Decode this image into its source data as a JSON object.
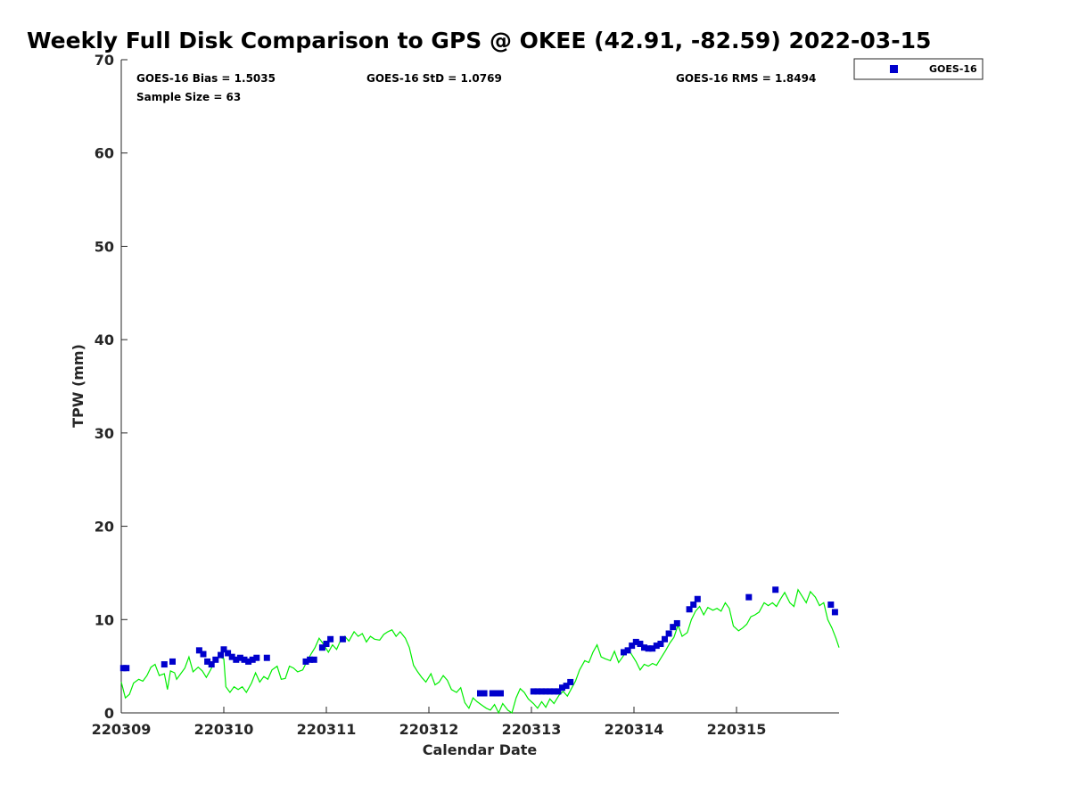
{
  "chart_data": {
    "type": "scatter",
    "title": "Weekly Full Disk Comparison to GPS @ OKEE (42.91, -82.59) 2022-03-15",
    "xlabel": "Calendar Date",
    "ylabel": "TPW (mm)",
    "xlim": [
      0,
      7
    ],
    "ylim": [
      0,
      70
    ],
    "x_ticks": [
      {
        "value": 0,
        "label": "220309"
      },
      {
        "value": 1,
        "label": "220310"
      },
      {
        "value": 2,
        "label": "220311"
      },
      {
        "value": 3,
        "label": "220312"
      },
      {
        "value": 4,
        "label": "220313"
      },
      {
        "value": 5,
        "label": "220314"
      },
      {
        "value": 6,
        "label": "220315"
      }
    ],
    "y_ticks": [
      0,
      10,
      20,
      30,
      40,
      50,
      60,
      70
    ],
    "grid": false,
    "legend": {
      "placement": "outside-top-right",
      "entries": [
        "GOES-16"
      ]
    },
    "stats": {
      "bias": "GOES-16 Bias = 1.5035",
      "std": "GOES-16 StD = 1.0769",
      "rms": "GOES-16 RMS = 1.8494",
      "sample_size": "Sample Size = 63"
    },
    "series": [
      {
        "name": "GOES-16",
        "kind": "scatter",
        "color": "#0000cc",
        "points": [
          [
            0.02,
            4.8
          ],
          [
            0.05,
            4.8
          ],
          [
            0.42,
            5.2
          ],
          [
            0.5,
            5.5
          ],
          [
            0.76,
            6.7
          ],
          [
            0.8,
            6.3
          ],
          [
            0.84,
            5.5
          ],
          [
            0.88,
            5.2
          ],
          [
            0.92,
            5.7
          ],
          [
            0.97,
            6.2
          ],
          [
            1.0,
            6.8
          ],
          [
            1.04,
            6.4
          ],
          [
            1.08,
            6.0
          ],
          [
            1.12,
            5.7
          ],
          [
            1.16,
            5.9
          ],
          [
            1.2,
            5.7
          ],
          [
            1.24,
            5.5
          ],
          [
            1.28,
            5.7
          ],
          [
            1.32,
            5.9
          ],
          [
            1.42,
            5.9
          ],
          [
            1.8,
            5.5
          ],
          [
            1.84,
            5.7
          ],
          [
            1.88,
            5.7
          ],
          [
            1.96,
            7.0
          ],
          [
            2.0,
            7.4
          ],
          [
            2.04,
            7.9
          ],
          [
            2.16,
            7.9
          ],
          [
            3.5,
            2.1
          ],
          [
            3.54,
            2.1
          ],
          [
            3.62,
            2.1
          ],
          [
            3.66,
            2.1
          ],
          [
            3.7,
            2.1
          ],
          [
            4.02,
            2.3
          ],
          [
            4.06,
            2.3
          ],
          [
            4.1,
            2.3
          ],
          [
            4.14,
            2.3
          ],
          [
            4.18,
            2.3
          ],
          [
            4.22,
            2.3
          ],
          [
            4.26,
            2.3
          ],
          [
            4.3,
            2.7
          ],
          [
            4.34,
            2.9
          ],
          [
            4.38,
            3.3
          ],
          [
            4.9,
            6.5
          ],
          [
            4.94,
            6.7
          ],
          [
            4.98,
            7.2
          ],
          [
            5.02,
            7.6
          ],
          [
            5.06,
            7.4
          ],
          [
            5.1,
            7.0
          ],
          [
            5.14,
            6.9
          ],
          [
            5.18,
            6.9
          ],
          [
            5.22,
            7.2
          ],
          [
            5.26,
            7.4
          ],
          [
            5.3,
            7.9
          ],
          [
            5.34,
            8.5
          ],
          [
            5.38,
            9.2
          ],
          [
            5.42,
            9.6
          ],
          [
            5.54,
            11.1
          ],
          [
            5.58,
            11.6
          ],
          [
            5.62,
            12.2
          ],
          [
            6.12,
            12.4
          ],
          [
            6.38,
            13.2
          ],
          [
            6.92,
            11.6
          ],
          [
            6.96,
            10.8
          ]
        ]
      },
      {
        "name": "",
        "kind": "line",
        "color": "#00ee00",
        "points": [
          [
            0.0,
            3.3
          ],
          [
            0.04,
            1.6
          ],
          [
            0.08,
            2.0
          ],
          [
            0.12,
            3.2
          ],
          [
            0.17,
            3.6
          ],
          [
            0.21,
            3.4
          ],
          [
            0.25,
            4.0
          ],
          [
            0.29,
            4.9
          ],
          [
            0.33,
            5.2
          ],
          [
            0.37,
            4.0
          ],
          [
            0.42,
            4.2
          ],
          [
            0.45,
            2.5
          ],
          [
            0.48,
            4.5
          ],
          [
            0.52,
            4.3
          ],
          [
            0.54,
            3.6
          ],
          [
            0.58,
            4.2
          ],
          [
            0.62,
            4.8
          ],
          [
            0.66,
            6.0
          ],
          [
            0.7,
            4.4
          ],
          [
            0.75,
            4.9
          ],
          [
            0.79,
            4.5
          ],
          [
            0.83,
            3.8
          ],
          [
            0.87,
            4.6
          ],
          [
            0.92,
            5.7
          ],
          [
            0.96,
            6.0
          ],
          [
            1.0,
            5.8
          ],
          [
            1.02,
            2.8
          ],
          [
            1.06,
            2.2
          ],
          [
            1.1,
            2.8
          ],
          [
            1.14,
            2.5
          ],
          [
            1.18,
            2.8
          ],
          [
            1.22,
            2.2
          ],
          [
            1.27,
            3.2
          ],
          [
            1.31,
            4.3
          ],
          [
            1.35,
            3.3
          ],
          [
            1.39,
            3.9
          ],
          [
            1.43,
            3.6
          ],
          [
            1.47,
            4.6
          ],
          [
            1.52,
            5.0
          ],
          [
            1.56,
            3.6
          ],
          [
            1.6,
            3.7
          ],
          [
            1.64,
            5.0
          ],
          [
            1.68,
            4.8
          ],
          [
            1.72,
            4.4
          ],
          [
            1.77,
            4.6
          ],
          [
            1.81,
            5.5
          ],
          [
            1.85,
            6.3
          ],
          [
            1.89,
            7.0
          ],
          [
            1.93,
            8.0
          ],
          [
            1.97,
            7.4
          ],
          [
            2.02,
            6.5
          ],
          [
            2.06,
            7.3
          ],
          [
            2.1,
            6.8
          ],
          [
            2.14,
            7.8
          ],
          [
            2.18,
            8.2
          ],
          [
            2.22,
            7.7
          ],
          [
            2.27,
            8.7
          ],
          [
            2.31,
            8.2
          ],
          [
            2.35,
            8.5
          ],
          [
            2.39,
            7.6
          ],
          [
            2.43,
            8.2
          ],
          [
            2.47,
            7.9
          ],
          [
            2.52,
            7.8
          ],
          [
            2.56,
            8.4
          ],
          [
            2.6,
            8.7
          ],
          [
            2.64,
            8.9
          ],
          [
            2.68,
            8.2
          ],
          [
            2.72,
            8.7
          ],
          [
            2.77,
            8.0
          ],
          [
            2.81,
            7.0
          ],
          [
            2.85,
            5.1
          ],
          [
            2.89,
            4.4
          ],
          [
            2.93,
            3.8
          ],
          [
            2.97,
            3.3
          ],
          [
            3.02,
            4.2
          ],
          [
            3.06,
            3.0
          ],
          [
            3.1,
            3.3
          ],
          [
            3.14,
            4.0
          ],
          [
            3.18,
            3.5
          ],
          [
            3.22,
            2.5
          ],
          [
            3.27,
            2.2
          ],
          [
            3.31,
            2.7
          ],
          [
            3.35,
            1.1
          ],
          [
            3.39,
            0.5
          ],
          [
            3.43,
            1.6
          ],
          [
            3.47,
            1.2
          ],
          [
            3.52,
            0.8
          ],
          [
            3.56,
            0.5
          ],
          [
            3.6,
            0.3
          ],
          [
            3.64,
            0.9
          ],
          [
            3.68,
            0.0
          ],
          [
            3.72,
            1.0
          ],
          [
            3.77,
            0.3
          ],
          [
            3.81,
            0.0
          ],
          [
            3.85,
            1.6
          ],
          [
            3.89,
            2.6
          ],
          [
            3.93,
            2.2
          ],
          [
            3.97,
            1.5
          ],
          [
            4.02,
            1.0
          ],
          [
            4.06,
            0.5
          ],
          [
            4.1,
            1.2
          ],
          [
            4.14,
            0.6
          ],
          [
            4.18,
            1.5
          ],
          [
            4.22,
            1.0
          ],
          [
            4.27,
            1.9
          ],
          [
            4.31,
            2.3
          ],
          [
            4.35,
            1.8
          ],
          [
            4.39,
            2.6
          ],
          [
            4.43,
            3.4
          ],
          [
            4.47,
            4.6
          ],
          [
            4.52,
            5.6
          ],
          [
            4.56,
            5.4
          ],
          [
            4.6,
            6.5
          ],
          [
            4.64,
            7.3
          ],
          [
            4.68,
            6.0
          ],
          [
            4.72,
            5.8
          ],
          [
            4.77,
            5.6
          ],
          [
            4.81,
            6.6
          ],
          [
            4.85,
            5.4
          ],
          [
            4.89,
            6.0
          ],
          [
            4.93,
            6.7
          ],
          [
            4.97,
            6.4
          ],
          [
            5.02,
            5.5
          ],
          [
            5.06,
            4.6
          ],
          [
            5.1,
            5.2
          ],
          [
            5.14,
            5.0
          ],
          [
            5.18,
            5.3
          ],
          [
            5.22,
            5.1
          ],
          [
            5.27,
            6.0
          ],
          [
            5.31,
            6.7
          ],
          [
            5.35,
            7.5
          ],
          [
            5.39,
            8.1
          ],
          [
            5.43,
            9.4
          ],
          [
            5.47,
            8.2
          ],
          [
            5.52,
            8.6
          ],
          [
            5.56,
            10.0
          ],
          [
            5.6,
            10.9
          ],
          [
            5.64,
            11.4
          ],
          [
            5.68,
            10.5
          ],
          [
            5.72,
            11.3
          ],
          [
            5.77,
            11.0
          ],
          [
            5.81,
            11.2
          ],
          [
            5.85,
            10.9
          ],
          [
            5.89,
            11.8
          ],
          [
            5.93,
            11.2
          ],
          [
            5.97,
            9.3
          ],
          [
            6.02,
            8.8
          ],
          [
            6.06,
            9.1
          ],
          [
            6.1,
            9.5
          ],
          [
            6.14,
            10.3
          ],
          [
            6.18,
            10.5
          ],
          [
            6.22,
            10.8
          ],
          [
            6.27,
            11.8
          ],
          [
            6.31,
            11.5
          ],
          [
            6.35,
            11.8
          ],
          [
            6.39,
            11.4
          ],
          [
            6.43,
            12.2
          ],
          [
            6.47,
            12.9
          ],
          [
            6.52,
            11.8
          ],
          [
            6.56,
            11.4
          ],
          [
            6.6,
            13.2
          ],
          [
            6.64,
            12.5
          ],
          [
            6.68,
            11.8
          ],
          [
            6.72,
            13.0
          ],
          [
            6.77,
            12.4
          ],
          [
            6.81,
            11.5
          ],
          [
            6.85,
            11.8
          ],
          [
            6.89,
            10.0
          ],
          [
            6.93,
            9.1
          ],
          [
            6.97,
            8.0
          ],
          [
            7.0,
            7.0
          ]
        ]
      }
    ]
  }
}
